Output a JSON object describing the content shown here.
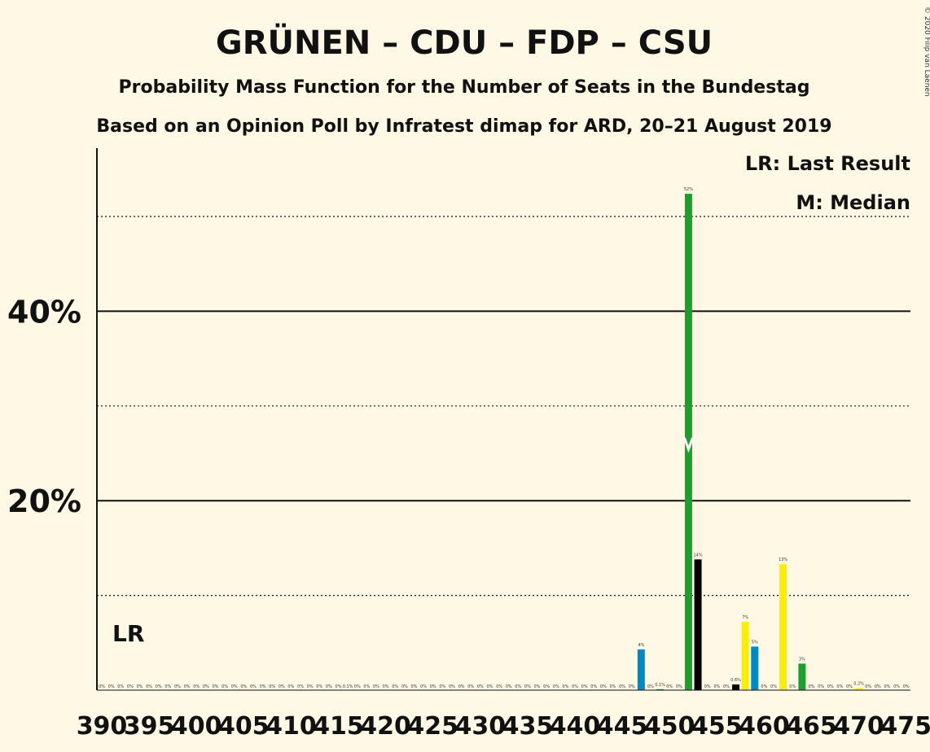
{
  "chart_data": {
    "type": "bar",
    "title": "GRÜNEN – CDU – FDP – CSU",
    "subtitle": "Probability Mass Function for the Number of Seats in the Bundestag",
    "subtitle2": "Based on an Opinion Poll by Infratest dimap for ARD, 20–21 August 2019",
    "copyright": "© 2020 Filip van Laenen",
    "legend": {
      "lr": "LR: Last Result",
      "median": "M: Median",
      "position": "top-right"
    },
    "lr_marker": {
      "label": "LR",
      "seats": 392
    },
    "median_marker": {
      "label": "M",
      "seats": 452
    },
    "xlabel": "",
    "ylabel": "",
    "x_range": [
      390,
      475
    ],
    "y_range": [
      0,
      55
    ],
    "x_ticks": [
      390,
      395,
      400,
      405,
      410,
      415,
      420,
      425,
      430,
      435,
      440,
      445,
      450,
      455,
      460,
      465,
      470,
      475
    ],
    "y_ticks_solid": [
      {
        "value": 20,
        "label": "20%"
      },
      {
        "value": 40,
        "label": "40%"
      }
    ],
    "y_ticks_dotted": [
      10,
      30,
      50
    ],
    "grid": true,
    "colors": {
      "GRÜNE": "#1BA030",
      "CDU": "#000000",
      "FDP": "#FFED00",
      "CSU": "#008AC5",
      "zero_label": "#333333"
    },
    "seats": [
      390,
      391,
      392,
      393,
      394,
      395,
      396,
      397,
      398,
      399,
      400,
      401,
      402,
      403,
      404,
      405,
      406,
      407,
      408,
      409,
      410,
      411,
      412,
      413,
      414,
      415,
      416,
      417,
      418,
      419,
      420,
      421,
      422,
      423,
      424,
      425,
      426,
      427,
      428,
      429,
      430,
      431,
      432,
      433,
      434,
      435,
      436,
      437,
      438,
      439,
      440,
      441,
      442,
      443,
      444,
      445,
      446,
      447,
      448,
      449,
      450,
      451,
      452,
      453,
      454,
      455,
      456,
      457,
      458,
      459,
      460,
      461,
      462,
      463,
      464,
      465,
      466,
      467,
      468,
      469,
      470,
      471,
      472,
      473,
      474,
      475
    ],
    "bars": [
      {
        "seats": 447,
        "value": 4.3,
        "label": "4%",
        "party": "CSU"
      },
      {
        "seats": 449,
        "value": 0.1,
        "label": "0.1%",
        "party": "GRÜNE"
      },
      {
        "seats": 452,
        "value": 52.4,
        "label": "52%",
        "party": "GRÜNE"
      },
      {
        "seats": 453,
        "value": 13.8,
        "label": "14%",
        "party": "CDU"
      },
      {
        "seats": 457,
        "value": 0.6,
        "label": "0.6%",
        "party": "CDU"
      },
      {
        "seats": 458,
        "value": 7.2,
        "label": "7%",
        "party": "FDP"
      },
      {
        "seats": 459,
        "value": 4.6,
        "label": "5%",
        "party": "CSU"
      },
      {
        "seats": 462,
        "value": 13.3,
        "label": "13%",
        "party": "FDP"
      },
      {
        "seats": 464,
        "value": 2.8,
        "label": "3%",
        "party": "GRÜNE"
      },
      {
        "seats": 470,
        "value": 0.2,
        "label": "0.2%",
        "party": "FDP"
      }
    ],
    "small_labels": [
      {
        "seats": 416,
        "label": "0.1%"
      }
    ]
  }
}
